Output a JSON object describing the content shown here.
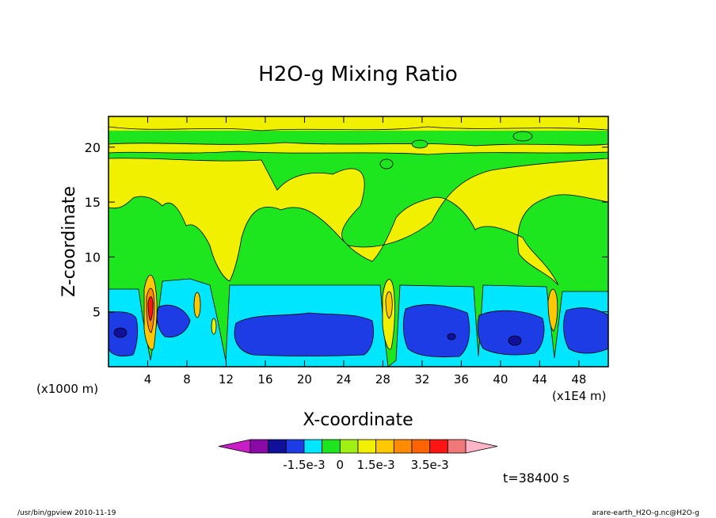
{
  "chart_data": {
    "type": "heatmap",
    "title": "H2O-g Mixing Ratio",
    "xlabel": "X-coordinate",
    "ylabel": "Z-coordinate",
    "x_unit": "(x1000 m)",
    "x_unit_right": "(x1E4 m)",
    "xlim": [
      0,
      51
    ],
    "ylim": [
      0,
      22.8
    ],
    "x_ticks": [
      4,
      8,
      12,
      16,
      20,
      24,
      28,
      32,
      36,
      40,
      44,
      48
    ],
    "y_ticks": [
      5,
      10,
      15,
      20
    ],
    "colorbar": {
      "colors": [
        "#c81ec8",
        "#8a0aa8",
        "#10109a",
        "#1e3ce6",
        "#00e6ff",
        "#1ee61e",
        "#a0f014",
        "#f0f000",
        "#ffc800",
        "#ff8c00",
        "#ff6400",
        "#ff1414",
        "#f07878",
        "#ffb4c8"
      ],
      "labels": [
        "-1.5e-3",
        "0",
        "1.5e-3",
        "3.5e-3"
      ]
    },
    "annotation": "t=38400 s",
    "footer_left": "/usr/bin/gpview   2010-11-19",
    "footer_right": "arare-earth_H2O-g.nc@H2O-g"
  }
}
